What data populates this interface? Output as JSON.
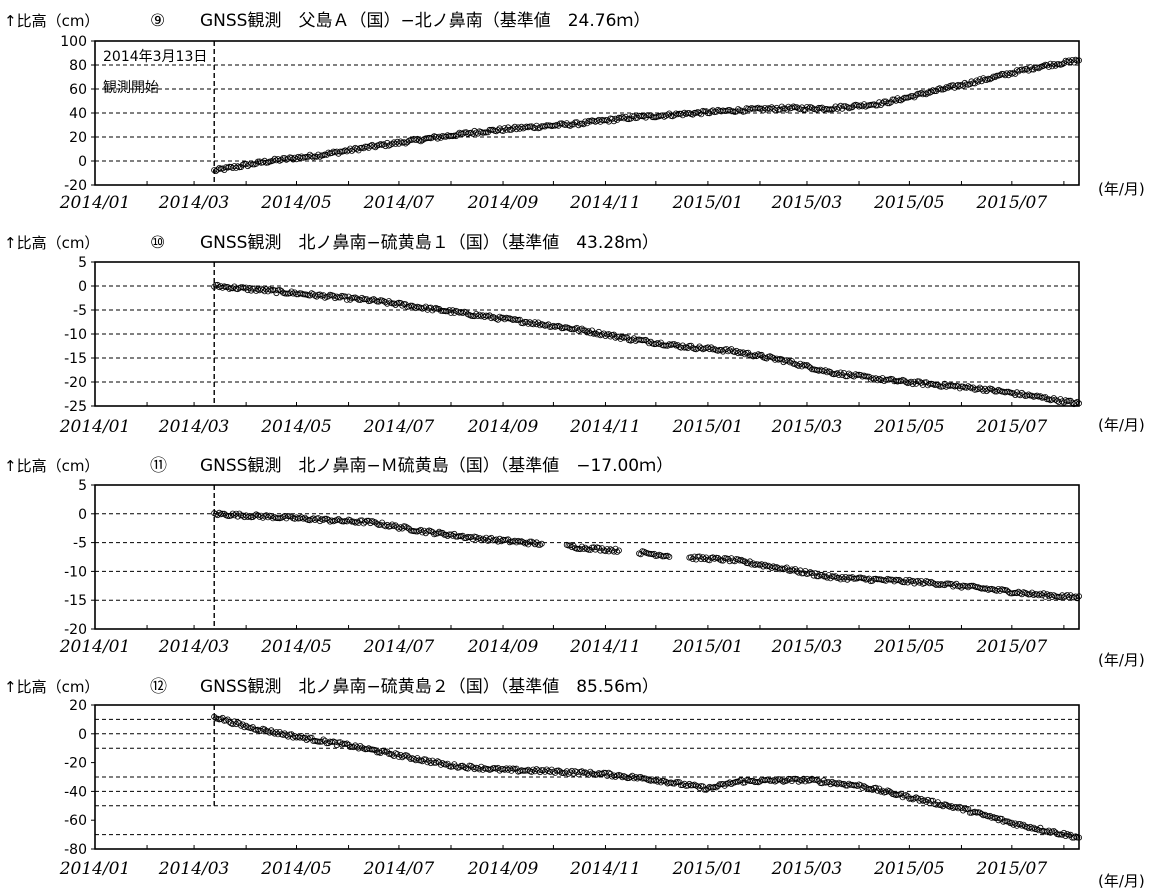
{
  "chart_data": [
    {
      "type": "scatter",
      "ylabel": "↑比高（cm）",
      "number": "⑨",
      "title": "GNSS観測　父島Ａ（国）−北ノ鼻南（基準値　24.76ｍ）",
      "xunit": "(年/月)",
      "x_ticks": [
        "2014/01",
        "2014/03",
        "2014/05",
        "2014/07",
        "2014/09",
        "2014/11",
        "2015/01",
        "2015/03",
        "2015/05",
        "2015/07"
      ],
      "y_ticks": [
        "100",
        "80",
        "60",
        "40",
        "20",
        "0",
        "-20"
      ],
      "ylim": [
        -20,
        100
      ],
      "grid_y": [
        0,
        20,
        40,
        60,
        80
      ],
      "start_line": {
        "x": "2014/03/13",
        "y_top": 100,
        "y_bottom": -20
      },
      "annotation": [
        "2014年3月13日",
        "観測開始"
      ],
      "x_range": [
        "2014/01/01",
        "2015/08/10"
      ],
      "series": [
        {
          "points": [
            [
              "2014/03/13",
              -8
            ],
            [
              "2014/04/15",
              0
            ],
            [
              "2014/05/15",
              5
            ],
            [
              "2014/06/15",
              12
            ],
            [
              "2014/07/15",
              18
            ],
            [
              "2014/08/15",
              24
            ],
            [
              "2014/09/15",
              28
            ],
            [
              "2014/10/15",
              31
            ],
            [
              "2014/11/15",
              36
            ],
            [
              "2014/12/15",
              39
            ],
            [
              "2015/01/15",
              42
            ],
            [
              "2015/02/15",
              44
            ],
            [
              "2015/03/15",
              44
            ],
            [
              "2015/04/15",
              48
            ],
            [
              "2015/05/15",
              58
            ],
            [
              "2015/06/15",
              68
            ],
            [
              "2015/07/15",
              78
            ],
            [
              "2015/08/10",
              84
            ]
          ]
        }
      ]
    },
    {
      "type": "scatter",
      "ylabel": "↑比高（cm）",
      "number": "⑩",
      "title": "GNSS観測　北ノ鼻南−硫黄島１（国）（基準値　43.28ｍ）",
      "xunit": "(年/月)",
      "x_ticks": [
        "2014/01",
        "2014/03",
        "2014/05",
        "2014/07",
        "2014/09",
        "2014/11",
        "2015/01",
        "2015/03",
        "2015/05",
        "2015/07"
      ],
      "y_ticks": [
        "5",
        "0",
        "-5",
        "-10",
        "-15",
        "-20",
        "-25"
      ],
      "ylim": [
        -25,
        5
      ],
      "grid_y": [
        0,
        -5,
        -10,
        -15,
        -20
      ],
      "start_line": {
        "x": "2014/03/13",
        "y_top": 5,
        "y_bottom": -25
      },
      "x_range": [
        "2014/01/01",
        "2015/08/10"
      ],
      "series": [
        {
          "points": [
            [
              "2014/03/13",
              0
            ],
            [
              "2014/04/15",
              -1
            ],
            [
              "2014/05/15",
              -2
            ],
            [
              "2014/06/15",
              -3
            ],
            [
              "2014/07/15",
              -4.5
            ],
            [
              "2014/08/15",
              -6
            ],
            [
              "2014/09/15",
              -7.5
            ],
            [
              "2014/10/15",
              -9
            ],
            [
              "2014/11/15",
              -11
            ],
            [
              "2014/12/15",
              -12.5
            ],
            [
              "2015/01/15",
              -13.5
            ],
            [
              "2015/02/15",
              -15.5
            ],
            [
              "2015/03/15",
              -18
            ],
            [
              "2015/04/15",
              -19.5
            ],
            [
              "2015/05/15",
              -20.5
            ],
            [
              "2015/06/15",
              -21.5
            ],
            [
              "2015/07/15",
              -23
            ],
            [
              "2015/08/10",
              -24.5
            ]
          ]
        }
      ]
    },
    {
      "type": "scatter",
      "ylabel": "↑比高（cm）",
      "number": "⑪",
      "title": "GNSS観測　北ノ鼻南−Ｍ硫黄島（国）（基準値　−17.00ｍ）",
      "xunit": "(年/月)",
      "x_ticks": [
        "2014/01",
        "2014/03",
        "2014/05",
        "2014/07",
        "2014/09",
        "2014/11",
        "2015/01",
        "2015/03",
        "2015/05",
        "2015/07"
      ],
      "y_ticks": [
        "5",
        "0",
        "-5",
        "-10",
        "-15",
        "-20"
      ],
      "ylim": [
        -20,
        5
      ],
      "grid_y": [
        0,
        -5,
        -10,
        -15
      ],
      "start_line": {
        "x": "2014/03/13",
        "y_top": 5,
        "y_bottom": -20
      },
      "x_range": [
        "2014/01/01",
        "2015/08/10"
      ],
      "series": [
        {
          "points": [
            [
              "2014/03/13",
              0
            ],
            [
              "2014/04/15",
              -0.5
            ],
            [
              "2014/05/15",
              -1
            ],
            [
              "2014/06/15",
              -1.5
            ],
            [
              "2014/07/15",
              -3
            ],
            [
              "2014/08/15",
              -4.2
            ],
            [
              "2014/09/15",
              -5
            ],
            [
              "2014/10/15",
              -5.8
            ],
            [
              "2014/11/15",
              -6.5
            ],
            [
              "2014/12/15",
              -7.5
            ],
            [
              "2015/01/15",
              -8
            ],
            [
              "2015/02/15",
              -9.5
            ],
            [
              "2015/03/15",
              -11
            ],
            [
              "2015/04/15",
              -11.5
            ],
            [
              "2015/05/15",
              -12
            ],
            [
              "2015/06/15",
              -13
            ],
            [
              "2015/07/15",
              -14
            ],
            [
              "2015/08/10",
              -14.5
            ]
          ],
          "gaps": [
            [
              "2014/09/25",
              "2014/10/08"
            ],
            [
              "2014/11/10",
              "2014/11/20"
            ],
            [
              "2014/12/10",
              "2014/12/20"
            ]
          ]
        }
      ]
    },
    {
      "type": "scatter",
      "ylabel": "↑比高（cm）",
      "number": "⑫",
      "title": "GNSS観測　北ノ鼻南−硫黄島２（国）（基準値　85.56ｍ）",
      "xunit": "(年/月)",
      "x_ticks": [
        "2014/01",
        "2014/03",
        "2014/05",
        "2014/07",
        "2014/09",
        "2014/11",
        "2015/01",
        "2015/03",
        "2015/05",
        "2015/07"
      ],
      "y_ticks": [
        "20",
        "0",
        "-20",
        "-40",
        "-60",
        "-80"
      ],
      "ylim": [
        -80,
        20
      ],
      "grid_y": [
        10,
        0,
        -10,
        -30,
        -40,
        -50,
        -70
      ],
      "start_line": {
        "x": "2014/03/13",
        "y_top": 20,
        "y_bottom": -50
      },
      "x_range": [
        "2014/01/01",
        "2015/08/10"
      ],
      "series": [
        {
          "points": [
            [
              "2014/03/13",
              12
            ],
            [
              "2014/04/01",
              5
            ],
            [
              "2014/05/01",
              -2
            ],
            [
              "2014/06/01",
              -8
            ],
            [
              "2014/07/01",
              -15
            ],
            [
              "2014/08/01",
              -22
            ],
            [
              "2014/09/01",
              -25
            ],
            [
              "2014/10/01",
              -26
            ],
            [
              "2014/11/01",
              -28
            ],
            [
              "2014/12/01",
              -32
            ],
            [
              "2015/01/01",
              -38
            ],
            [
              "2015/01/20",
              -33
            ],
            [
              "2015/03/01",
              -32
            ],
            [
              "2015/04/01",
              -36
            ],
            [
              "2015/05/01",
              -44
            ],
            [
              "2015/06/01",
              -52
            ],
            [
              "2015/07/01",
              -62
            ],
            [
              "2015/08/10",
              -72
            ]
          ]
        }
      ]
    }
  ]
}
